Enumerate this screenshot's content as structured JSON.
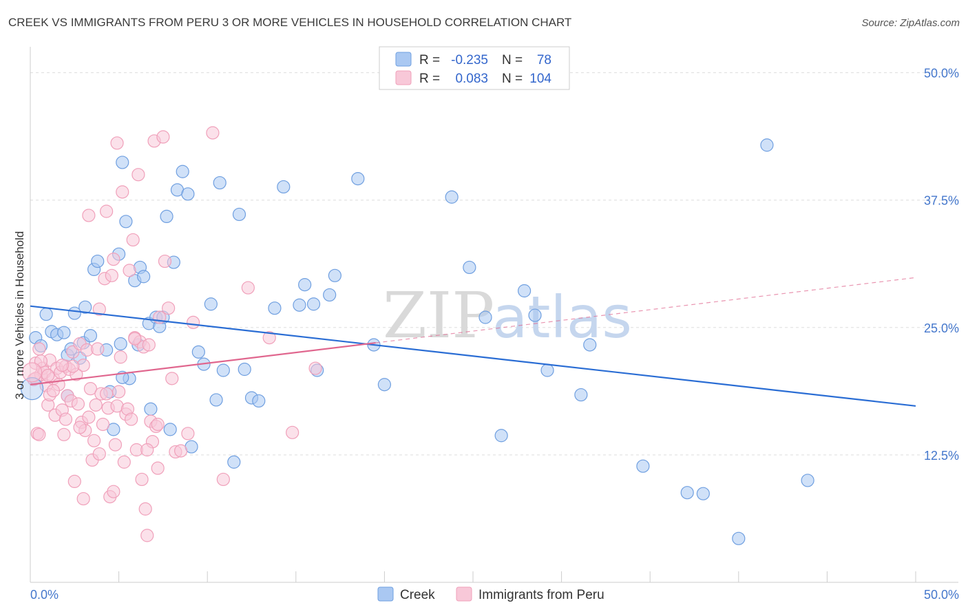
{
  "chart_data": {
    "type": "scatter",
    "title": "CREEK VS IMMIGRANTS FROM PERU 3 OR MORE VEHICLES IN HOUSEHOLD CORRELATION CHART",
    "source": "Source: ZipAtlas.com",
    "xlabel": "",
    "ylabel": "3 or more Vehicles in Household",
    "xlim": [
      0,
      50
    ],
    "ylim": [
      0,
      52
    ],
    "x_tick_labels": {
      "left": "0.0%",
      "right": "50.0%"
    },
    "y_ticks": [
      {
        "value": 12.5,
        "label": "12.5%"
      },
      {
        "value": 25.0,
        "label": "25.0%"
      },
      {
        "value": 37.5,
        "label": "37.5%"
      },
      {
        "value": 50.0,
        "label": "50.0%"
      }
    ],
    "watermark": {
      "zip": "ZIP",
      "atlas": "atlas"
    },
    "legend": {
      "rows": [
        {
          "r_label": "R =",
          "r_value": "-0.235",
          "n_label": "N =",
          "n_value": "78"
        },
        {
          "r_label": "R =",
          "r_value": "0.083",
          "n_label": "N =",
          "n_value": "104"
        }
      ]
    },
    "series": [
      {
        "name": "Creek",
        "color": "#6f9fe0",
        "fill": "#aac8f2",
        "line_color": "#2a6dd4",
        "trend": {
          "x0": 0,
          "y0": 27.1,
          "x1": 50,
          "y1": 17.3,
          "dashed_from": null
        },
        "points": [
          [
            43.9,
            10.0
          ],
          [
            0.3,
            24.0
          ],
          [
            0.6,
            23.2
          ],
          [
            0.9,
            26.3
          ],
          [
            1.2,
            24.6
          ],
          [
            1.5,
            24.3
          ],
          [
            1.9,
            24.5
          ],
          [
            2.1,
            22.3
          ],
          [
            2.3,
            22.9
          ],
          [
            2.5,
            26.4
          ],
          [
            2.8,
            22.0
          ],
          [
            3.0,
            23.5
          ],
          [
            3.1,
            27.0
          ],
          [
            3.4,
            24.2
          ],
          [
            3.6,
            30.7
          ],
          [
            3.8,
            31.5
          ],
          [
            4.3,
            22.8
          ],
          [
            4.5,
            18.7
          ],
          [
            4.7,
            15.0
          ],
          [
            5.0,
            32.2
          ],
          [
            5.1,
            23.4
          ],
          [
            5.2,
            41.2
          ],
          [
            5.4,
            35.4
          ],
          [
            5.6,
            20.0
          ],
          [
            5.9,
            29.6
          ],
          [
            6.1,
            23.3
          ],
          [
            6.2,
            30.9
          ],
          [
            6.4,
            30.0
          ],
          [
            6.7,
            25.4
          ],
          [
            6.8,
            17.0
          ],
          [
            7.1,
            26.0
          ],
          [
            7.3,
            25.1
          ],
          [
            7.5,
            26.0
          ],
          [
            7.7,
            35.9
          ],
          [
            7.9,
            15.0
          ],
          [
            8.1,
            31.4
          ],
          [
            8.3,
            38.5
          ],
          [
            8.6,
            40.3
          ],
          [
            8.9,
            38.1
          ],
          [
            9.1,
            13.3
          ],
          [
            9.5,
            22.6
          ],
          [
            9.8,
            21.4
          ],
          [
            10.2,
            27.3
          ],
          [
            10.5,
            17.9
          ],
          [
            10.7,
            39.2
          ],
          [
            10.9,
            20.8
          ],
          [
            11.5,
            11.8
          ],
          [
            11.8,
            36.1
          ],
          [
            12.1,
            20.9
          ],
          [
            12.5,
            18.1
          ],
          [
            12.9,
            17.8
          ],
          [
            13.8,
            26.9
          ],
          [
            14.3,
            38.8
          ],
          [
            15.2,
            27.2
          ],
          [
            15.5,
            29.2
          ],
          [
            16.0,
            27.3
          ],
          [
            16.2,
            20.8
          ],
          [
            16.9,
            28.2
          ],
          [
            17.2,
            30.1
          ],
          [
            18.5,
            39.6
          ],
          [
            19.4,
            23.3
          ],
          [
            20.0,
            19.4
          ],
          [
            23.8,
            37.8
          ],
          [
            24.8,
            30.9
          ],
          [
            25.7,
            26.0
          ],
          [
            26.6,
            14.4
          ],
          [
            27.9,
            28.6
          ],
          [
            28.5,
            26.2
          ],
          [
            29.2,
            20.8
          ],
          [
            31.1,
            18.4
          ],
          [
            31.6,
            23.3
          ],
          [
            34.6,
            11.4
          ],
          [
            37.1,
            8.8
          ],
          [
            38.0,
            8.7
          ],
          [
            40.0,
            4.3
          ],
          [
            41.6,
            42.9
          ],
          [
            2.1,
            18.3
          ],
          [
            5.2,
            20.1
          ]
        ]
      },
      {
        "name": "Immigrants from Peru",
        "color": "#f0a0ba",
        "fill": "#f8c8d8",
        "line_color": "#e0668e",
        "trend": {
          "x0": 0,
          "y0": 19.4,
          "x1": 50,
          "y1": 29.9,
          "dashed_from": 19.5
        },
        "points": [
          [
            0.2,
            19.9
          ],
          [
            0.3,
            21.5
          ],
          [
            0.4,
            14.6
          ],
          [
            0.5,
            22.9
          ],
          [
            0.6,
            20.4
          ],
          [
            0.7,
            21.0
          ],
          [
            0.8,
            20.6
          ],
          [
            0.9,
            19.3
          ],
          [
            1.0,
            17.4
          ],
          [
            1.1,
            21.8
          ],
          [
            1.3,
            20.0
          ],
          [
            1.4,
            16.4
          ],
          [
            1.5,
            21.0
          ],
          [
            1.6,
            19.4
          ],
          [
            1.7,
            20.6
          ],
          [
            1.8,
            16.9
          ],
          [
            1.9,
            14.5
          ],
          [
            2.0,
            21.2
          ],
          [
            2.1,
            18.3
          ],
          [
            2.2,
            20.9
          ],
          [
            2.3,
            17.8
          ],
          [
            2.4,
            22.6
          ],
          [
            2.5,
            9.9
          ],
          [
            2.6,
            20.4
          ],
          [
            2.7,
            17.5
          ],
          [
            2.8,
            23.4
          ],
          [
            2.9,
            15.7
          ],
          [
            3.0,
            21.3
          ],
          [
            3.0,
            8.2
          ],
          [
            3.1,
            14.9
          ],
          [
            3.2,
            22.8
          ],
          [
            3.3,
            36.0
          ],
          [
            3.4,
            19.0
          ],
          [
            3.5,
            12.0
          ],
          [
            3.6,
            13.9
          ],
          [
            3.7,
            17.4
          ],
          [
            3.8,
            22.9
          ],
          [
            3.9,
            12.6
          ],
          [
            4.0,
            18.5
          ],
          [
            4.1,
            15.5
          ],
          [
            4.2,
            29.8
          ],
          [
            4.3,
            36.4
          ],
          [
            4.4,
            17.1
          ],
          [
            4.5,
            8.4
          ],
          [
            4.6,
            30.1
          ],
          [
            4.7,
            31.7
          ],
          [
            4.8,
            13.5
          ],
          [
            4.9,
            17.3
          ],
          [
            4.9,
            43.1
          ],
          [
            5.0,
            18.7
          ],
          [
            5.1,
            22.1
          ],
          [
            5.2,
            38.3
          ],
          [
            5.3,
            11.8
          ],
          [
            5.4,
            16.5
          ],
          [
            5.5,
            17.0
          ],
          [
            5.6,
            30.6
          ],
          [
            5.7,
            16.0
          ],
          [
            5.8,
            33.6
          ],
          [
            5.9,
            24.0
          ],
          [
            6.0,
            13.0
          ],
          [
            6.1,
            40.0
          ],
          [
            6.2,
            23.6
          ],
          [
            6.3,
            10.1
          ],
          [
            6.4,
            23.1
          ],
          [
            6.5,
            7.2
          ],
          [
            6.6,
            4.6
          ],
          [
            6.7,
            23.3
          ],
          [
            6.8,
            15.8
          ],
          [
            6.9,
            13.8
          ],
          [
            7.0,
            43.3
          ],
          [
            7.1,
            15.3
          ],
          [
            7.2,
            11.2
          ],
          [
            7.3,
            26.0
          ],
          [
            7.5,
            43.7
          ],
          [
            7.6,
            31.5
          ],
          [
            7.8,
            26.9
          ],
          [
            8.0,
            20.0
          ],
          [
            8.2,
            12.8
          ],
          [
            8.5,
            12.9
          ],
          [
            8.9,
            14.6
          ],
          [
            9.2,
            25.5
          ],
          [
            10.3,
            44.1
          ],
          [
            10.9,
            10.1
          ],
          [
            12.3,
            28.9
          ],
          [
            13.5,
            24.0
          ],
          [
            14.8,
            14.7
          ],
          [
            16.1,
            21.0
          ],
          [
            0.5,
            14.5
          ],
          [
            1.1,
            18.4
          ],
          [
            2.4,
            21.2
          ],
          [
            3.9,
            26.8
          ],
          [
            4.3,
            18.5
          ],
          [
            5.9,
            23.9
          ],
          [
            0.3,
            20.0
          ],
          [
            1.8,
            21.3
          ],
          [
            3.3,
            16.2
          ],
          [
            6.6,
            13.0
          ],
          [
            4.7,
            8.9
          ],
          [
            2.0,
            16.0
          ],
          [
            1.0,
            20.3
          ],
          [
            7.2,
            15.5
          ],
          [
            0.6,
            21.7
          ],
          [
            1.3,
            18.8
          ],
          [
            2.8,
            15.2
          ]
        ]
      }
    ],
    "bottom_legend": [
      "Creek",
      "Immigrants from Peru"
    ]
  }
}
